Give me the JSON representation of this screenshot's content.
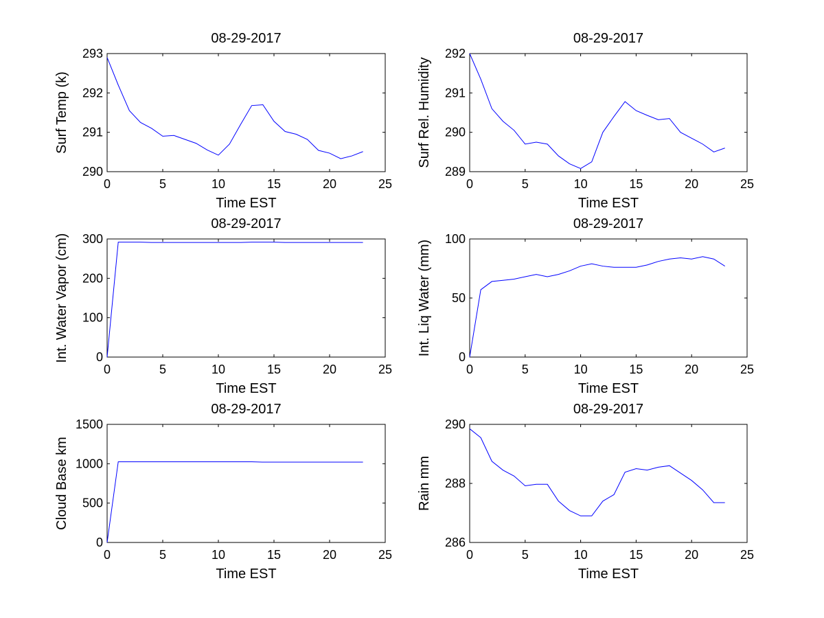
{
  "figure": {
    "background": "#ffffff",
    "line_color": "#0000ff"
  },
  "chart_data": [
    {
      "type": "line",
      "title": "08-29-2017",
      "xlabel": "Time EST",
      "ylabel": "Surf Temp (k)",
      "xlim": [
        0,
        25
      ],
      "ylim": [
        290,
        293
      ],
      "xticks": [
        0,
        5,
        10,
        15,
        20,
        25
      ],
      "yticks": [
        290,
        291,
        292,
        293
      ],
      "x": [
        0,
        1,
        2,
        3,
        4,
        5,
        6,
        7,
        8,
        9,
        10,
        11,
        12,
        13,
        14,
        15,
        16,
        17,
        18,
        19,
        20,
        21,
        22,
        23
      ],
      "series": [
        {
          "name": "Surf Temp",
          "values": [
            292.9,
            292.2,
            291.55,
            291.25,
            291.1,
            290.9,
            290.92,
            290.82,
            290.72,
            290.55,
            290.42,
            290.7,
            291.2,
            291.68,
            291.7,
            291.28,
            291.02,
            290.95,
            290.82,
            290.54,
            290.47,
            290.33,
            290.4,
            290.51
          ]
        }
      ]
    },
    {
      "type": "line",
      "title": "08-29-2017",
      "xlabel": "Time EST",
      "ylabel": "Surf Rel. Humidity",
      "xlim": [
        0,
        25
      ],
      "ylim": [
        289,
        292
      ],
      "xticks": [
        0,
        5,
        10,
        15,
        20,
        25
      ],
      "yticks": [
        289,
        290,
        291,
        292
      ],
      "x": [
        0,
        1,
        2,
        3,
        4,
        5,
        6,
        7,
        8,
        9,
        10,
        11,
        12,
        13,
        14,
        15,
        16,
        17,
        18,
        19,
        20,
        21,
        22,
        23
      ],
      "series": [
        {
          "name": "Surf Rel. Humidity",
          "values": [
            292.0,
            291.35,
            290.6,
            290.28,
            290.05,
            289.7,
            289.75,
            289.7,
            289.4,
            289.2,
            289.08,
            289.25,
            290.0,
            290.4,
            290.78,
            290.55,
            290.43,
            290.32,
            290.35,
            290.0,
            289.85,
            289.7,
            289.5,
            289.6
          ]
        }
      ]
    },
    {
      "type": "line",
      "title": "08-29-2017",
      "xlabel": "Time EST",
      "ylabel": "Int. Water Vapor (cm)",
      "xlim": [
        0,
        25
      ],
      "ylim": [
        0,
        300
      ],
      "xticks": [
        0,
        5,
        10,
        15,
        20,
        25
      ],
      "yticks": [
        0,
        100,
        200,
        300
      ],
      "x": [
        0,
        1,
        2,
        3,
        4,
        5,
        6,
        7,
        8,
        9,
        10,
        11,
        12,
        13,
        14,
        15,
        16,
        17,
        18,
        19,
        20,
        21,
        22,
        23
      ],
      "series": [
        {
          "name": "Int. Water Vapor",
          "values": [
            0,
            292,
            292,
            292,
            291,
            291,
            291,
            291,
            291,
            291,
            291,
            291,
            291,
            292,
            292,
            292,
            291,
            291,
            291,
            291,
            291,
            291,
            291,
            291
          ]
        }
      ]
    },
    {
      "type": "line",
      "title": "08-29-2017",
      "xlabel": "Time EST",
      "ylabel": "Int. Liq Water (mm)",
      "xlim": [
        0,
        25
      ],
      "ylim": [
        0,
        100
      ],
      "xticks": [
        0,
        5,
        10,
        15,
        20,
        25
      ],
      "yticks": [
        0,
        50,
        100
      ],
      "x": [
        0,
        1,
        2,
        3,
        4,
        5,
        6,
        7,
        8,
        9,
        10,
        11,
        12,
        13,
        14,
        15,
        16,
        17,
        18,
        19,
        20,
        21,
        22,
        23
      ],
      "series": [
        {
          "name": "Int. Liq Water",
          "values": [
            0,
            57,
            64,
            65,
            66,
            68,
            70,
            68,
            70,
            73,
            77,
            79,
            77,
            76,
            76,
            76,
            78,
            81,
            83,
            84,
            83,
            85,
            83,
            77
          ]
        }
      ]
    },
    {
      "type": "line",
      "title": "08-29-2017",
      "xlabel": "Time EST",
      "ylabel": "Cloud Base km",
      "xlim": [
        0,
        25
      ],
      "ylim": [
        0,
        1500
      ],
      "xticks": [
        0,
        5,
        10,
        15,
        20,
        25
      ],
      "yticks": [
        0,
        500,
        1000,
        1500
      ],
      "x": [
        0,
        1,
        2,
        3,
        4,
        5,
        6,
        7,
        8,
        9,
        10,
        11,
        12,
        13,
        14,
        15,
        16,
        17,
        18,
        19,
        20,
        21,
        22,
        23
      ],
      "series": [
        {
          "name": "Cloud Base",
          "values": [
            0,
            1025,
            1025,
            1025,
            1025,
            1025,
            1025,
            1025,
            1025,
            1025,
            1025,
            1025,
            1025,
            1025,
            1020,
            1020,
            1020,
            1020,
            1020,
            1020,
            1020,
            1020,
            1020,
            1020
          ]
        }
      ]
    },
    {
      "type": "line",
      "title": "08-29-2017",
      "xlabel": "Time EST",
      "ylabel": "Rain mm",
      "xlim": [
        0,
        25
      ],
      "ylim": [
        286,
        290
      ],
      "xticks": [
        0,
        5,
        10,
        15,
        20,
        25
      ],
      "yticks": [
        286,
        288,
        290
      ],
      "x": [
        0,
        1,
        2,
        3,
        4,
        5,
        6,
        7,
        8,
        9,
        10,
        11,
        12,
        13,
        14,
        15,
        16,
        17,
        18,
        19,
        20,
        21,
        22,
        23
      ],
      "series": [
        {
          "name": "Rain",
          "values": [
            289.85,
            289.55,
            288.75,
            288.45,
            288.25,
            287.92,
            287.97,
            287.97,
            287.4,
            287.08,
            286.9,
            286.9,
            287.4,
            287.62,
            288.38,
            288.5,
            288.45,
            288.55,
            288.6,
            288.35,
            288.1,
            287.78,
            287.35,
            287.35
          ]
        }
      ]
    }
  ]
}
